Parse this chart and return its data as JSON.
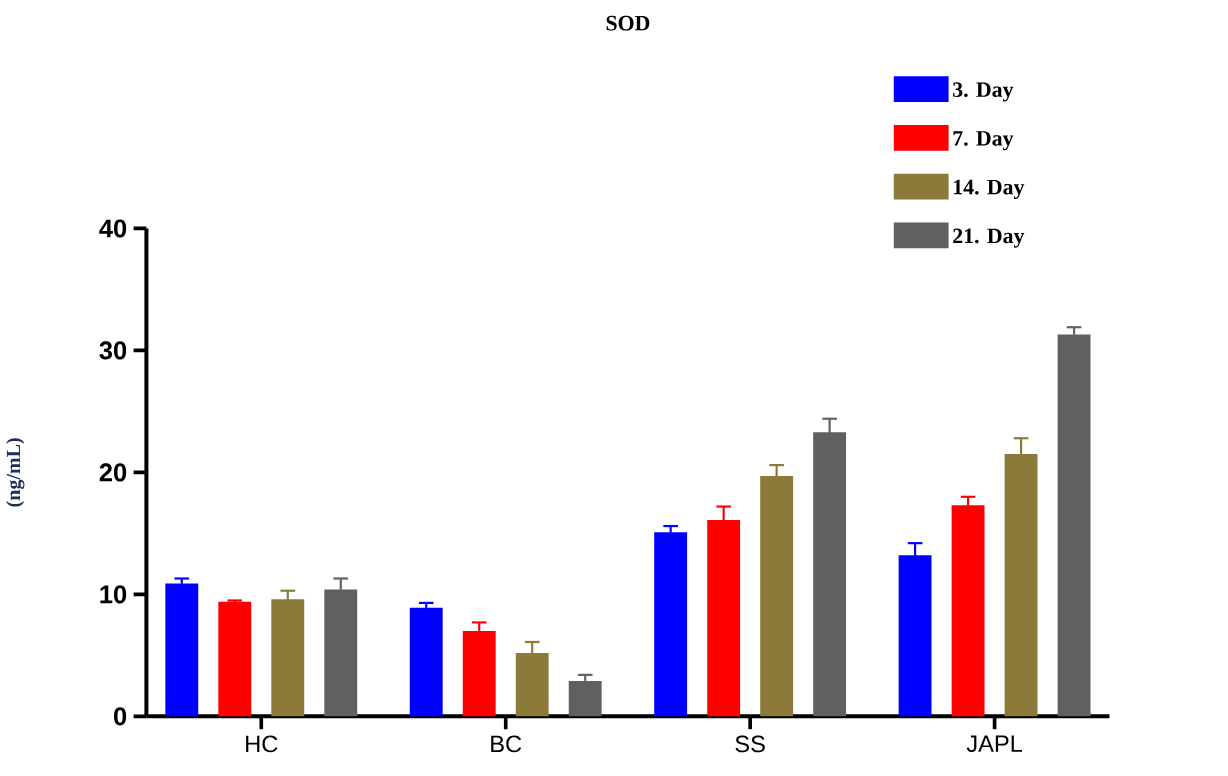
{
  "chart_data": {
    "type": "bar",
    "title": "SOD",
    "ylabel": "(ng/mL)",
    "categories": [
      "HC",
      "BC",
      "SS",
      "JAPL"
    ],
    "ylim": [
      0,
      40
    ],
    "yticks": [
      0,
      10,
      20,
      30,
      40
    ],
    "legend": "top right",
    "series": [
      {
        "name": "3. Day",
        "color": "#0000ff",
        "values": [
          10.9,
          8.9,
          15.1,
          13.2
        ],
        "errors": [
          0.4,
          0.4,
          0.5,
          1.0
        ]
      },
      {
        "name": "7. Day",
        "color": "#ff0000",
        "values": [
          9.4,
          7.0,
          16.1,
          17.3
        ],
        "errors": [
          0.1,
          0.7,
          1.1,
          0.7
        ]
      },
      {
        "name": "14. Day",
        "color": "#8b7a3a",
        "values": [
          9.6,
          5.2,
          19.7,
          21.5
        ],
        "errors": [
          0.7,
          0.9,
          0.9,
          1.3
        ]
      },
      {
        "name": "21. Day",
        "color": "#606060",
        "values": [
          10.4,
          2.9,
          23.3,
          31.3
        ],
        "errors": [
          0.9,
          0.5,
          1.1,
          0.6
        ]
      }
    ]
  }
}
